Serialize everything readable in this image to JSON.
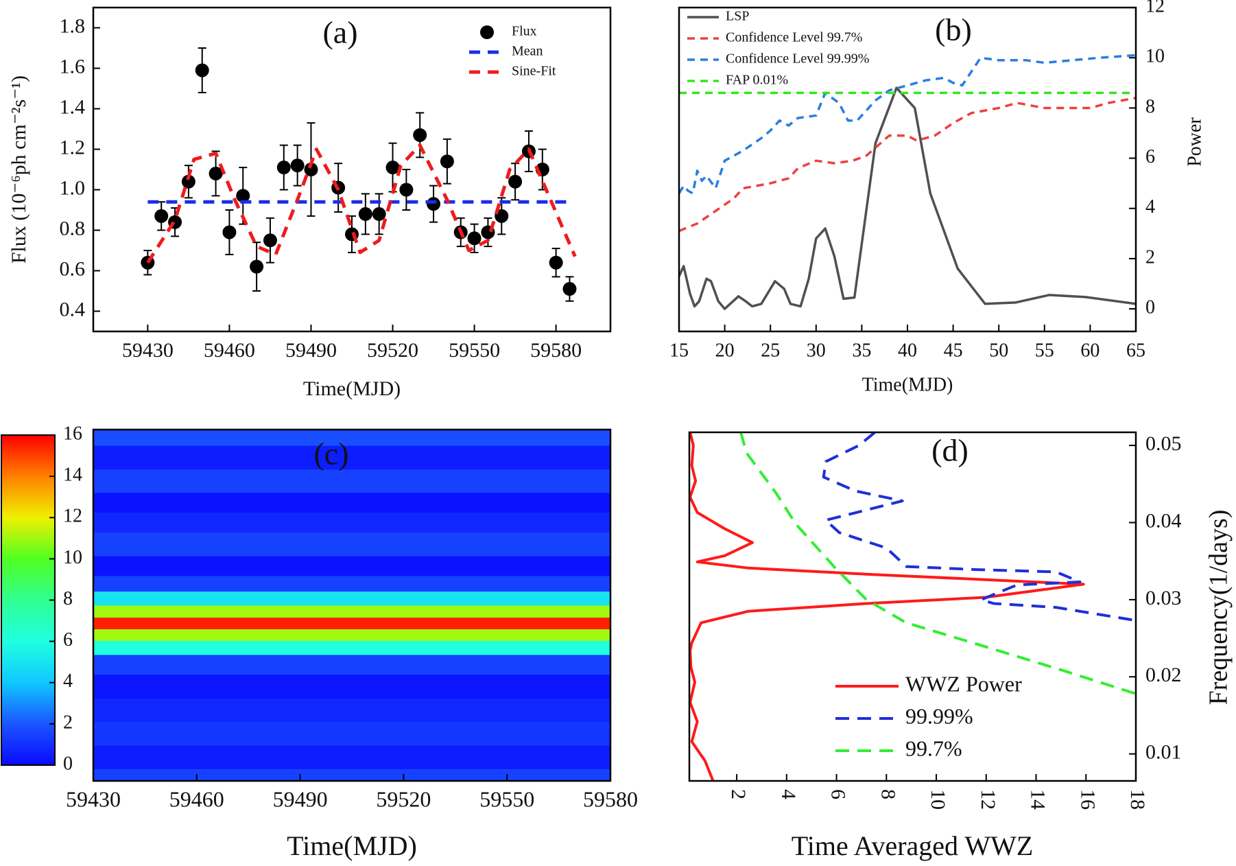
{
  "chart_data": [
    {
      "type": "scatter",
      "title": "(a)",
      "xlabel": "Time(MJD)",
      "ylabel": "Flux (10⁻⁶ph cm⁻²s⁻¹)",
      "xlim": [
        59410,
        59600
      ],
      "xticks": [
        59430,
        59460,
        59490,
        59520,
        59550,
        59580
      ],
      "ylim": [
        0.3,
        1.9
      ],
      "yticks": [
        0.4,
        0.6,
        0.8,
        {
          "value": 1,
          "label": "1.0"
        },
        1.2,
        1.4,
        1.6,
        1.8
      ],
      "legend": "upper right",
      "series": [
        {
          "name": "Flux",
          "color": "#000000",
          "style": "marker",
          "x": [
            59430,
            59435,
            59440,
            59445,
            59450,
            59455,
            59460,
            59465,
            59470,
            59475,
            59480,
            59485,
            59490,
            59500,
            59505,
            59510,
            59515,
            59520,
            59525,
            59530,
            59535,
            59540,
            59545,
            59550,
            59555,
            59560,
            59565,
            59570,
            59575,
            59580,
            59585
          ],
          "values": [
            0.64,
            0.87,
            0.84,
            1.04,
            1.59,
            1.08,
            0.79,
            0.97,
            0.62,
            0.75,
            1.11,
            1.12,
            1.1,
            1.01,
            0.78,
            0.88,
            0.88,
            1.11,
            1.0,
            1.27,
            0.93,
            1.14,
            0.79,
            0.76,
            0.79,
            0.87,
            1.04,
            1.19,
            1.1,
            0.64,
            0.51
          ],
          "errors": [
            0.06,
            0.07,
            0.07,
            0.08,
            0.11,
            0.11,
            0.11,
            0.14,
            0.12,
            0.11,
            0.11,
            0.1,
            0.23,
            0.12,
            0.09,
            0.1,
            0.1,
            0.12,
            0.1,
            0.11,
            0.09,
            0.11,
            0.07,
            0.07,
            0.07,
            0.09,
            0.09,
            0.1,
            0.1,
            0.07,
            0.06
          ]
        },
        {
          "name": "Mean",
          "color": "#1a2ee6",
          "style": "dashed",
          "x": [
            59430,
            59585
          ],
          "values": [
            0.94,
            0.94
          ]
        },
        {
          "name": "Sine-Fit",
          "color": "#ee1c1c",
          "style": "dashed",
          "x": [
            59430,
            59440,
            59447,
            59455,
            59462,
            59470,
            59477,
            59485,
            59492,
            59500,
            59508,
            59515,
            59523,
            59530,
            59540,
            59548,
            59555,
            59563,
            59570,
            59578,
            59587
          ],
          "values": [
            0.64,
            0.85,
            1.15,
            1.18,
            0.95,
            0.72,
            0.68,
            0.95,
            1.2,
            1.0,
            0.69,
            0.75,
            1.12,
            1.22,
            0.95,
            0.7,
            0.75,
            1.1,
            1.2,
            0.95,
            0.67
          ]
        }
      ]
    },
    {
      "type": "line",
      "title": "(b)",
      "xlabel": "Time(MJD)",
      "ylabel": "Power",
      "y_axis": "right",
      "xlim": [
        15,
        65
      ],
      "xticks": [
        15,
        20,
        25,
        30,
        35,
        40,
        45,
        50,
        55,
        60,
        65
      ],
      "ylim": [
        -0.9,
        12
      ],
      "yticks": [
        0,
        2,
        4,
        6,
        8,
        10,
        12
      ],
      "legend": "upper left",
      "series": [
        {
          "name": "LSP",
          "color": "#505050",
          "style": "solid",
          "x": [
            15,
            15.5,
            16.2,
            16.7,
            17.2,
            18,
            18.5,
            19.3,
            20,
            21.5,
            22.3,
            23,
            24,
            25.5,
            26.5,
            27.2,
            28.3,
            29.2,
            30,
            31,
            32,
            33,
            34.2,
            36.5,
            38.8,
            40.8,
            42.5,
            45.5,
            48.5,
            51.8,
            55.5,
            59.5,
            65
          ],
          "values": [
            1.3,
            1.7,
            0.6,
            0.1,
            0.3,
            1.2,
            1.1,
            0.3,
            0.0,
            0.5,
            0.3,
            0.1,
            0.2,
            1.1,
            0.8,
            0.2,
            0.1,
            1.2,
            2.8,
            3.2,
            2.1,
            0.4,
            0.45,
            6.6,
            8.8,
            8.0,
            4.6,
            1.6,
            0.2,
            0.25,
            0.55,
            0.47,
            0.2
          ]
        },
        {
          "name": "Confidence Level 99.7%",
          "color": "#ee4040",
          "style": "dashed",
          "x": [
            15,
            17,
            19,
            21,
            22,
            25,
            27,
            28,
            30,
            32,
            34,
            35.5,
            38,
            40,
            41,
            43,
            45,
            47,
            50,
            52,
            55,
            57,
            60,
            62,
            65
          ],
          "values": [
            3.1,
            3.4,
            3.9,
            4.4,
            4.8,
            5.0,
            5.2,
            5.6,
            5.9,
            5.8,
            5.9,
            6.1,
            6.9,
            6.9,
            6.7,
            6.9,
            7.4,
            7.8,
            8.0,
            8.2,
            8.0,
            8.0,
            8.0,
            8.2,
            8.4
          ]
        },
        {
          "name": "Confidence Level 99.99%",
          "color": "#2a7de0",
          "style": "dashed",
          "x": [
            15,
            15.5,
            16,
            16.5,
            17,
            17.5,
            18,
            19,
            20,
            22,
            24,
            25,
            26,
            27,
            28,
            30,
            31,
            32.5,
            33.5,
            34.5,
            36.5,
            38,
            40,
            42,
            44,
            45,
            46,
            48,
            50,
            53,
            55,
            58,
            61,
            65
          ],
          "values": [
            4.6,
            4.9,
            4.7,
            4.6,
            5.5,
            5.1,
            5.3,
            4.8,
            5.9,
            6.3,
            6.8,
            7.1,
            7.5,
            7.3,
            7.6,
            7.7,
            8.6,
            8.2,
            7.5,
            7.5,
            8.3,
            8.7,
            8.9,
            9.1,
            9.2,
            9.0,
            8.9,
            10.0,
            9.9,
            9.9,
            9.8,
            9.9,
            10.0,
            10.1
          ]
        },
        {
          "name": "FAP 0.01%",
          "color": "#33e61a",
          "style": "dashed",
          "x": [
            15,
            65
          ],
          "values": [
            8.6,
            8.6
          ]
        }
      ]
    },
    {
      "type": "heatmap",
      "title": "(c)",
      "xlabel": "Time(MJD)",
      "xlim": [
        59430,
        59580
      ],
      "xticks": [
        59430,
        59460,
        59490,
        59520,
        59550,
        59580
      ],
      "ylim": [
        0.0065,
        0.0517
      ],
      "y": [
        0.0065,
        0.0096,
        0.0126,
        0.0156,
        0.0187,
        0.0217,
        0.0238,
        0.0253,
        0.0268,
        0.0283,
        0.0299,
        0.0319,
        0.0339,
        0.037,
        0.04,
        0.0421,
        0.0451,
        0.0481,
        0.0512
      ],
      "values": [
        1.5,
        0.5,
        1.2,
        0.8,
        0.3,
        1.5,
        6,
        11,
        15.5,
        11,
        5,
        1.5,
        0.2,
        1.5,
        0.8,
        0.2,
        1.5,
        0.5,
        1.8
      ],
      "clim": [
        0,
        16
      ],
      "cticks": [
        0,
        2,
        4,
        6,
        8,
        10,
        12,
        14,
        16
      ],
      "colormap": [
        "#0a0aff",
        "#1a55ff",
        "#10c8ff",
        "#20ffe0",
        "#30ff90",
        "#50ff20",
        "#f0f000",
        "#ff8000",
        "#ff0000"
      ]
    },
    {
      "type": "line",
      "title": "(d)",
      "xlabel": "Time Averaged WWZ",
      "ylabel": "Frequency(1/days)",
      "y_axis": "right",
      "xtick_rotation": 90,
      "xlim": [
        0.1,
        18
      ],
      "xticks": [
        2,
        4,
        6,
        8,
        10,
        12,
        14,
        16,
        18
      ],
      "ylim": [
        0.0065,
        0.0517
      ],
      "yticks": [
        0.01,
        0.02,
        0.03,
        0.04,
        0.05
      ],
      "legend": "lower center",
      "series": [
        {
          "name": "WWZ Power",
          "color": "#ff1a1a",
          "style": "solid",
          "x": [
            1.05,
            0.73,
            0.2,
            0.42,
            0.13,
            0.32,
            0.16,
            0.13,
            0.2,
            0.57,
            2.47,
            7.2,
            11.97,
            15.9,
            11.97,
            7.2,
            2.47,
            0.42,
            1.52,
            2.63,
            1.52,
            0.42,
            0.13,
            0.35,
            0.2,
            0.26,
            0.13
          ],
          "values": [
            0.0065,
            0.0091,
            0.0116,
            0.0142,
            0.0167,
            0.0193,
            0.0213,
            0.0234,
            0.0244,
            0.027,
            0.0285,
            0.0295,
            0.0303,
            0.032,
            0.0326,
            0.0333,
            0.0341,
            0.0349,
            0.0357,
            0.0374,
            0.0392,
            0.0413,
            0.0433,
            0.0454,
            0.0474,
            0.05,
            0.0517
          ]
        },
        {
          "name": "99.99%",
          "color": "#1f2fd9",
          "style": "dashed",
          "x": [
            7.54,
            6.9,
            5.57,
            5.48,
            6.75,
            8.64,
            5.57,
            6.11,
            8.0,
            8.8,
            11.65,
            14.8,
            15.76,
            13.23,
            11.8,
            12.3,
            14.8,
            18
          ],
          "values": [
            0.0517,
            0.05,
            0.0479,
            0.0459,
            0.0441,
            0.0428,
            0.0403,
            0.0387,
            0.0367,
            0.0343,
            0.0339,
            0.0336,
            0.0323,
            0.0319,
            0.03,
            0.0295,
            0.029,
            0.0273
          ]
        },
        {
          "name": "99.7%",
          "color": "#33ee33",
          "style": "dashed",
          "x": [
            2.16,
            2.4,
            3.58,
            4.37,
            5.95,
            7.2,
            8.8,
            11.97,
            15.1,
            18
          ],
          "values": [
            0.0517,
            0.049,
            0.0438,
            0.0398,
            0.0341,
            0.03,
            0.027,
            0.0239,
            0.0208,
            0.0178
          ]
        }
      ]
    }
  ]
}
